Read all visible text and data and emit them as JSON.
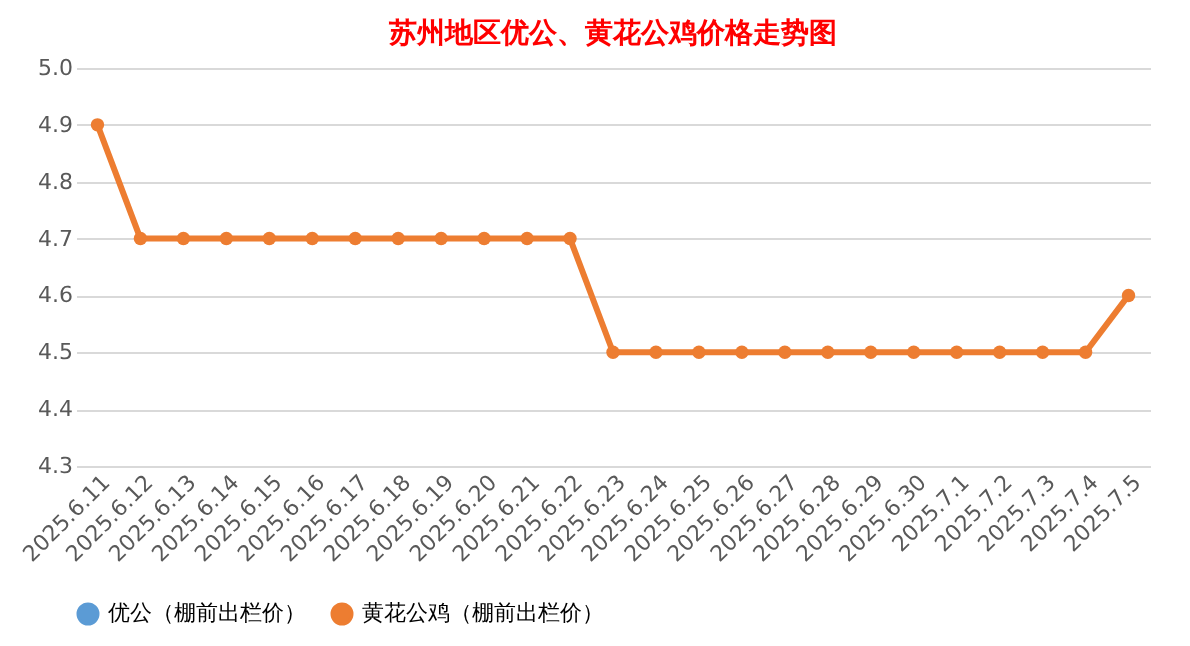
{
  "chart_data": {
    "type": "line",
    "title": "苏州地区优公、黄花公鸡价格走势图",
    "categories": [
      "2025.6.11",
      "2025.6.12",
      "2025.6.13",
      "2025.6.14",
      "2025.6.15",
      "2025.6.16",
      "2025.6.17",
      "2025.6.18",
      "2025.6.19",
      "2025.6.20",
      "2025.6.21",
      "2025.6.22",
      "2025.6.23",
      "2025.6.24",
      "2025.6.25",
      "2025.6.26",
      "2025.6.27",
      "2025.6.28",
      "2025.6.29",
      "2025.6.30",
      "2025.7.1",
      "2025.7.2",
      "2025.7.3",
      "2025.7.4",
      "2025.7.5"
    ],
    "series": [
      {
        "name": "优公（棚前出栏价）",
        "color": "#5b9bd5",
        "values": [
          null,
          null,
          null,
          null,
          null,
          null,
          null,
          null,
          null,
          null,
          null,
          null,
          null,
          null,
          null,
          null,
          null,
          null,
          null,
          null,
          null,
          null,
          null,
          null,
          null
        ]
      },
      {
        "name": "黄花公鸡（棚前出栏价）",
        "color": "#ed7d31",
        "values": [
          4.9,
          4.7,
          4.7,
          4.7,
          4.7,
          4.7,
          4.7,
          4.7,
          4.7,
          4.7,
          4.7,
          4.7,
          4.5,
          4.5,
          4.5,
          4.5,
          4.5,
          4.5,
          4.5,
          4.5,
          4.5,
          4.5,
          4.5,
          4.5,
          4.6
        ]
      }
    ],
    "ylim": [
      4.3,
      5.0
    ],
    "yticks": [
      4.3,
      4.4,
      4.5,
      4.6,
      4.7,
      4.8,
      4.9,
      {
        "value": 5.0,
        "label": "5.0"
      }
    ],
    "grid": "y",
    "legend": "bottom",
    "marker": "circle",
    "line_style": "solid"
  }
}
